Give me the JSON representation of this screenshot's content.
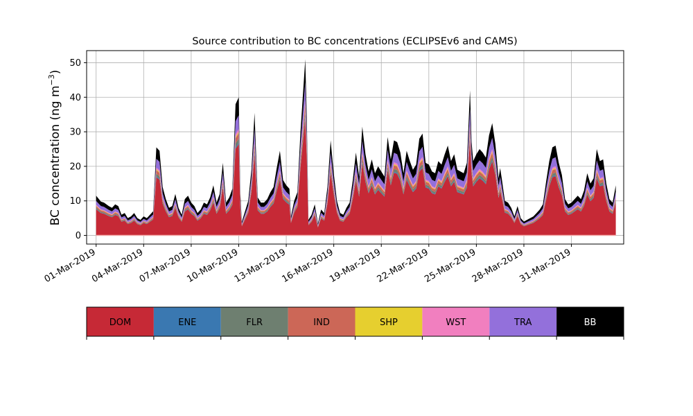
{
  "chart_data": {
    "type": "area",
    "stacked": true,
    "title": "Source contribution to BC concentrations (ECLIPSEv6 and CAMS)",
    "ylabel": "BC concentration (ng m",
    "ylabel_superscript": "−3",
    "ylabel_close": ")",
    "ylim": [
      -2.5,
      53.5
    ],
    "y_ticks": [
      0,
      10,
      20,
      30,
      40,
      50
    ],
    "xlim": [
      -0.6,
      33.3
    ],
    "x_ticks": [
      0,
      3,
      6,
      9,
      12,
      15,
      18,
      21,
      24,
      27,
      30
    ],
    "x_tick_labels": [
      "01-Mar-2019",
      "04-Mar-2019",
      "07-Mar-2019",
      "10-Mar-2019",
      "13-Mar-2019",
      "16-Mar-2019",
      "19-Mar-2019",
      "22-Mar-2019",
      "25-Mar-2019",
      "28-Mar-2019",
      "31-Mar-2019"
    ],
    "grid": true,
    "x_unit": "days since 01-Mar-2019",
    "total": [
      [
        0.0,
        11.5
      ],
      [
        0.3,
        9.8
      ],
      [
        0.5,
        9.5
      ],
      [
        0.8,
        8.5
      ],
      [
        1.0,
        8.0
      ],
      [
        1.2,
        9.0
      ],
      [
        1.4,
        8.5
      ],
      [
        1.6,
        6.0
      ],
      [
        1.8,
        6.5
      ],
      [
        2.0,
        5.0
      ],
      [
        2.2,
        5.5
      ],
      [
        2.4,
        6.5
      ],
      [
        2.6,
        5.0
      ],
      [
        2.8,
        4.5
      ],
      [
        3.0,
        5.5
      ],
      [
        3.2,
        5.0
      ],
      [
        3.4,
        6.0
      ],
      [
        3.6,
        7.0
      ],
      [
        3.8,
        25.5
      ],
      [
        4.0,
        24.5
      ],
      [
        4.2,
        14.0
      ],
      [
        4.4,
        10.5
      ],
      [
        4.6,
        8.0
      ],
      [
        4.8,
        8.5
      ],
      [
        5.0,
        12.0
      ],
      [
        5.2,
        8.0
      ],
      [
        5.4,
        6.0
      ],
      [
        5.6,
        10.5
      ],
      [
        5.8,
        11.5
      ],
      [
        6.0,
        9.5
      ],
      [
        6.2,
        8.5
      ],
      [
        6.4,
        6.5
      ],
      [
        6.6,
        7.5
      ],
      [
        6.8,
        9.5
      ],
      [
        7.0,
        9.0
      ],
      [
        7.2,
        11.0
      ],
      [
        7.4,
        14.5
      ],
      [
        7.6,
        9.5
      ],
      [
        7.8,
        12.0
      ],
      [
        8.0,
        21.0
      ],
      [
        8.2,
        9.5
      ],
      [
        8.4,
        11.0
      ],
      [
        8.6,
        13.5
      ],
      [
        8.8,
        38.0
      ],
      [
        9.0,
        40.0
      ],
      [
        9.1,
        12.0
      ],
      [
        9.2,
        4.0
      ],
      [
        9.4,
        7.0
      ],
      [
        9.6,
        10.0
      ],
      [
        9.8,
        19.0
      ],
      [
        10.0,
        35.5
      ],
      [
        10.2,
        11.0
      ],
      [
        10.4,
        9.5
      ],
      [
        10.6,
        9.5
      ],
      [
        10.8,
        10.5
      ],
      [
        11.0,
        12.5
      ],
      [
        11.2,
        14.0
      ],
      [
        11.4,
        19.5
      ],
      [
        11.6,
        24.5
      ],
      [
        11.8,
        16.0
      ],
      [
        12.0,
        14.5
      ],
      [
        12.2,
        13.5
      ],
      [
        12.3,
        5.5
      ],
      [
        12.5,
        10.0
      ],
      [
        12.7,
        12.5
      ],
      [
        12.9,
        30.0
      ],
      [
        13.1,
        44.0
      ],
      [
        13.2,
        51.0
      ],
      [
        13.3,
        33.0
      ],
      [
        13.4,
        4.5
      ],
      [
        13.6,
        6.0
      ],
      [
        13.8,
        9.0
      ],
      [
        14.0,
        3.5
      ],
      [
        14.2,
        7.5
      ],
      [
        14.4,
        6.5
      ],
      [
        14.6,
        14.0
      ],
      [
        14.8,
        27.5
      ],
      [
        15.0,
        18.0
      ],
      [
        15.2,
        10.0
      ],
      [
        15.4,
        6.5
      ],
      [
        15.6,
        6.0
      ],
      [
        15.8,
        8.0
      ],
      [
        16.0,
        9.5
      ],
      [
        16.2,
        16.0
      ],
      [
        16.4,
        24.0
      ],
      [
        16.6,
        17.0
      ],
      [
        16.8,
        31.5
      ],
      [
        17.0,
        23.5
      ],
      [
        17.2,
        18.5
      ],
      [
        17.4,
        22.0
      ],
      [
        17.6,
        18.0
      ],
      [
        17.8,
        20.0
      ],
      [
        18.0,
        18.5
      ],
      [
        18.2,
        17.0
      ],
      [
        18.4,
        28.5
      ],
      [
        18.6,
        22.0
      ],
      [
        18.8,
        27.5
      ],
      [
        19.0,
        27.0
      ],
      [
        19.2,
        24.0
      ],
      [
        19.4,
        18.0
      ],
      [
        19.6,
        24.5
      ],
      [
        19.8,
        21.5
      ],
      [
        20.0,
        19.0
      ],
      [
        20.2,
        20.5
      ],
      [
        20.4,
        28.0
      ],
      [
        20.6,
        29.5
      ],
      [
        20.8,
        21.0
      ],
      [
        21.0,
        20.5
      ],
      [
        21.2,
        18.5
      ],
      [
        21.4,
        18.0
      ],
      [
        21.6,
        21.5
      ],
      [
        21.8,
        20.5
      ],
      [
        22.0,
        23.5
      ],
      [
        22.2,
        26.0
      ],
      [
        22.4,
        21.5
      ],
      [
        22.6,
        23.5
      ],
      [
        22.8,
        19.0
      ],
      [
        23.0,
        18.5
      ],
      [
        23.2,
        18.0
      ],
      [
        23.4,
        21.0
      ],
      [
        23.6,
        42.0
      ],
      [
        23.7,
        27.0
      ],
      [
        23.8,
        21.5
      ],
      [
        24.0,
        23.5
      ],
      [
        24.2,
        25.0
      ],
      [
        24.4,
        24.0
      ],
      [
        24.6,
        22.5
      ],
      [
        24.8,
        29.0
      ],
      [
        25.0,
        32.5
      ],
      [
        25.2,
        26.5
      ],
      [
        25.4,
        16.5
      ],
      [
        25.5,
        19.5
      ],
      [
        25.6,
        16.5
      ],
      [
        25.8,
        10.0
      ],
      [
        26.0,
        9.5
      ],
      [
        26.2,
        8.0
      ],
      [
        26.4,
        5.5
      ],
      [
        26.6,
        8.5
      ],
      [
        26.8,
        5.0
      ],
      [
        27.0,
        4.0
      ],
      [
        27.2,
        4.5
      ],
      [
        27.4,
        5.0
      ],
      [
        27.6,
        5.5
      ],
      [
        27.8,
        6.5
      ],
      [
        28.0,
        7.5
      ],
      [
        28.2,
        9.0
      ],
      [
        28.4,
        15.5
      ],
      [
        28.6,
        21.5
      ],
      [
        28.8,
        25.5
      ],
      [
        29.0,
        26.0
      ],
      [
        29.2,
        21.0
      ],
      [
        29.4,
        17.5
      ],
      [
        29.6,
        10.5
      ],
      [
        29.8,
        9.0
      ],
      [
        30.0,
        9.5
      ],
      [
        30.2,
        10.5
      ],
      [
        30.4,
        11.5
      ],
      [
        30.6,
        10.5
      ],
      [
        30.8,
        13.0
      ],
      [
        31.0,
        18.0
      ],
      [
        31.2,
        15.0
      ],
      [
        31.4,
        16.5
      ],
      [
        31.6,
        25.0
      ],
      [
        31.8,
        21.5
      ],
      [
        32.0,
        22.0
      ],
      [
        32.2,
        15.0
      ],
      [
        32.4,
        10.5
      ],
      [
        32.6,
        9.5
      ],
      [
        32.8,
        14.5
      ]
    ],
    "series": [
      {
        "name": "DOM",
        "color": "#c62936",
        "fraction": 0.66
      },
      {
        "name": "ENE",
        "color": "#3a78b1",
        "fraction": 0.01
      },
      {
        "name": "FLR",
        "color": "#6e7f70",
        "fraction": 0.03
      },
      {
        "name": "IND",
        "color": "#cc6757",
        "fraction": 0.04
      },
      {
        "name": "SHP",
        "color": "#e6cf2f",
        "fraction": 0.01
      },
      {
        "name": "WST",
        "color": "#f17fbf",
        "fraction": 0.02
      },
      {
        "name": "TRA",
        "color": "#9370db",
        "fraction": 0.1
      },
      {
        "name": "BB",
        "color": "#000000",
        "fraction": 0.13
      }
    ],
    "legend": {
      "placement": "below",
      "entries": [
        {
          "label": "DOM",
          "color": "#c62936",
          "text_color": "#000000"
        },
        {
          "label": "ENE",
          "color": "#3a78b1",
          "text_color": "#000000"
        },
        {
          "label": "FLR",
          "color": "#6e7f70",
          "text_color": "#000000"
        },
        {
          "label": "IND",
          "color": "#cc6757",
          "text_color": "#000000"
        },
        {
          "label": "SHP",
          "color": "#e6cf2f",
          "text_color": "#000000"
        },
        {
          "label": "WST",
          "color": "#f17fbf",
          "text_color": "#000000"
        },
        {
          "label": "TRA",
          "color": "#9370db",
          "text_color": "#000000"
        },
        {
          "label": "BB",
          "color": "#000000",
          "text_color": "#ffffff"
        }
      ]
    }
  }
}
